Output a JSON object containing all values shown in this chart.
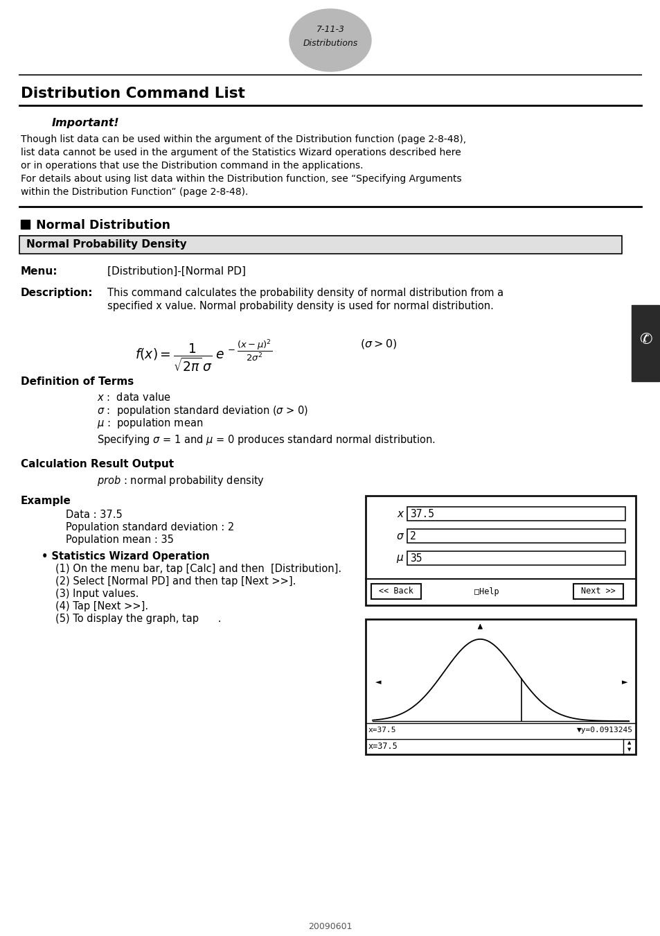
{
  "page_label": "7-11-3",
  "page_sublabel": "Distributions",
  "title": "Distribution Command List",
  "important_label": "Important!",
  "important_lines": [
    "Though list data can be used within the argument of the Distribution function (page 2-8-48),",
    "list data cannot be used in the argument of the Statistics Wizard operations described here",
    "or in operations that use the Distribution command in the applications.",
    "For details about using list data within the Distribution function, see “Specifying Arguments",
    "within the Distribution Function” (page 2-8-48)."
  ],
  "section_label": "Normal Distribution",
  "box_label": "Normal Probability Density",
  "menu_label": "Menu:",
  "menu_value": "[Distribution]-[Normal PD]",
  "desc_label": "Description:",
  "desc_line1": "This command calculates the probability density of normal distribution from a",
  "desc_line2": "specified x value. Normal probability density is used for normal distribution.",
  "def_terms_label": "Definition of Terms",
  "calc_label": "Calculation Result Output",
  "example_label": "Example",
  "example_data": "Data : 37.5",
  "example_sigma": "Population standard deviation : 2",
  "example_mu": "Population mean : 35",
  "stats_wizard_label": "• Statistics Wizard Operation",
  "steps": [
    "(1) On the menu bar, tap [Calc] and then  [Distribution].",
    "(2) Select [Normal PD] and then tap [Next >>].",
    "(3) Input values.",
    "(4) Tap [Next >>].",
    "(5) To display the graph, tap      ."
  ],
  "screen1_x_label": "x",
  "screen1_x_val": "37.5",
  "screen1_sigma_label": "σ",
  "screen1_sigma_val": "2",
  "screen1_mu_label": "μ",
  "screen1_mu_val": "35",
  "screen1_back": "<< Back",
  "screen1_help": "□Help",
  "screen1_next": "Next >>",
  "screen2_x": "x=37.5",
  "screen2_y": "▼y=0.0913245",
  "screen2_input": "x=37.5",
  "footer": "20090601",
  "bg_color": "#ffffff",
  "ellipse_color": "#b8b8b8",
  "tab_color": "#2a2a2a",
  "line_color": "#000000"
}
